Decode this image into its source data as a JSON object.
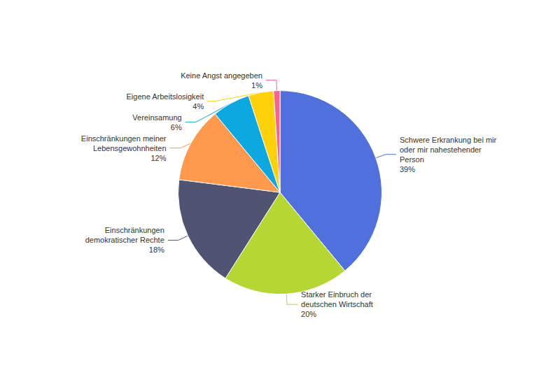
{
  "chart_data": {
    "type": "pie",
    "categories": [
      "Schwere Erkrankung bei mir\noder mir nahestehender\nPerson\n39%",
      "Starker Einbruch der\ndeutschen Wirtschaft\n20%",
      "Einschränkungen\ndemokratischer Rechte\n18%",
      "Einschränkungen meiner\nLebensgewohnheiten\n12%",
      "Vereinsamung\n6%",
      "Eigene Arbeitslosigkeit\n4%",
      "Keine Angst angegeben\n1%"
    ],
    "values": [
      39,
      20,
      18,
      12,
      6,
      4,
      1
    ]
  }
}
